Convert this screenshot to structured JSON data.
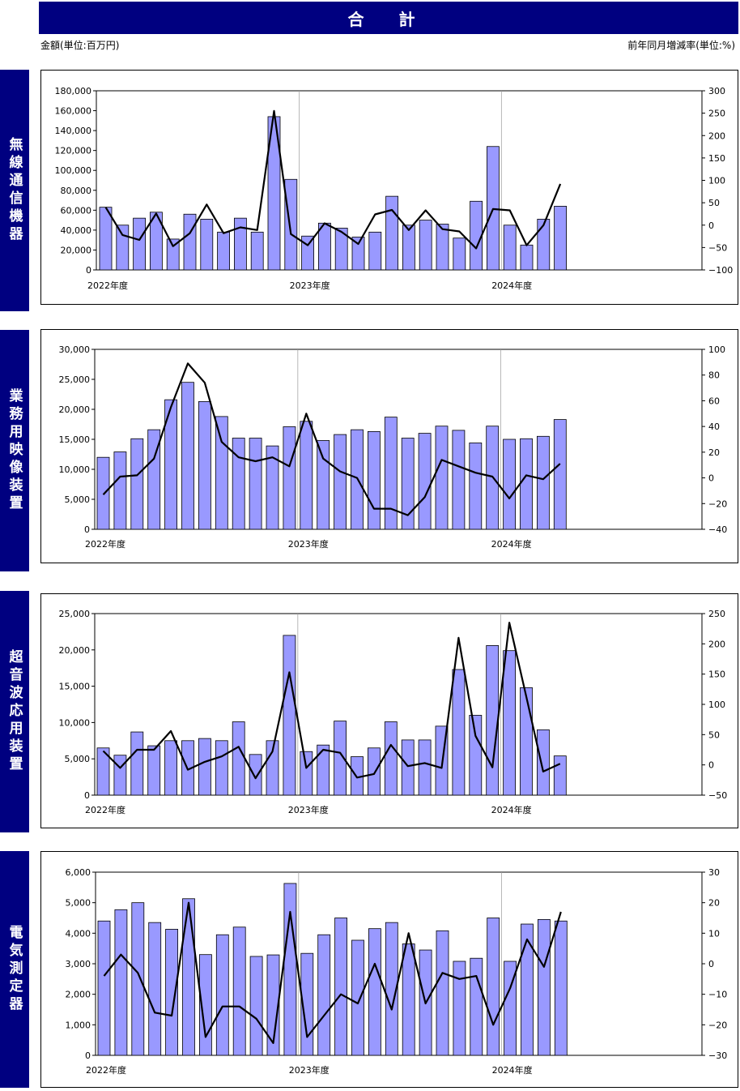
{
  "header": {
    "title": "合 計",
    "unit_left": "金額(単位:百万円)",
    "unit_right": "前年同月増減率(単位:%)"
  },
  "colors": {
    "bar": "#9999ff",
    "bar_stroke": "#000000",
    "line": "#000000",
    "header_bg": "#000080"
  },
  "chart_data": [
    {
      "type": "bar",
      "side_label": "無線通信機器",
      "year_labels": [
        "2022年度",
        "2023年度",
        "2024年度"
      ],
      "left_ticks": [
        "180,000",
        "160,000",
        "140,000",
        "120,000",
        "100,000",
        "80,000",
        "60,000",
        "40,000",
        "20,000",
        "0"
      ],
      "right_ticks": [
        "300",
        "250",
        "200",
        "150",
        "100",
        "50",
        "0",
        "−50",
        "−100"
      ],
      "ylim": [
        0,
        180000
      ],
      "y2lim": [
        -100,
        300
      ],
      "values": [
        63000,
        45000,
        52000,
        58000,
        31000,
        56000,
        51000,
        38000,
        52000,
        38000,
        154000,
        91000,
        34000,
        47000,
        42000,
        33000,
        38000,
        74000,
        45000,
        50000,
        46000,
        32000,
        69000,
        124000,
        45000,
        25000,
        51000,
        64000
      ],
      "rates": [
        40,
        -22,
        -33,
        26,
        -47,
        -18,
        46,
        -18,
        -5,
        -11,
        255,
        -20,
        -45,
        4,
        -15,
        -42,
        24,
        34,
        -11,
        33,
        -9,
        -14,
        -52,
        36,
        33,
        -45,
        0,
        92
      ]
    },
    {
      "type": "bar",
      "side_label": "業務用映像装置",
      "year_labels": [
        "2022年度",
        "2023年度",
        "2024年度"
      ],
      "left_ticks": [
        "30,000",
        "25,000",
        "20,000",
        "15,000",
        "10,000",
        "5,000",
        "0"
      ],
      "right_ticks": [
        "100",
        "80",
        "60",
        "40",
        "20",
        "0",
        "−20",
        "−40"
      ],
      "ylim": [
        0,
        30000
      ],
      "y2lim": [
        -40,
        100
      ],
      "values": [
        12000,
        12900,
        15100,
        16600,
        21600,
        24500,
        21300,
        18800,
        15200,
        15200,
        13900,
        17100,
        18000,
        14800,
        15800,
        16600,
        16300,
        18700,
        15200,
        16000,
        17200,
        16500,
        14400,
        17200,
        15000,
        15100,
        15500,
        18300
      ],
      "rates": [
        -13,
        1,
        2,
        15,
        55,
        89,
        74,
        28,
        16,
        13,
        16,
        9,
        50,
        15,
        5,
        0,
        -24,
        -24,
        -29,
        -15,
        14,
        9,
        4,
        1,
        -16,
        2,
        -1,
        11
      ]
    },
    {
      "type": "bar",
      "side_label": "超音波応用装置",
      "year_labels": [
        "2022年度",
        "2023年度",
        "2024年度"
      ],
      "left_ticks": [
        "25,000",
        "20,000",
        "15,000",
        "10,000",
        "5,000",
        "0"
      ],
      "right_ticks": [
        "250",
        "200",
        "150",
        "100",
        "50",
        "0",
        "−50"
      ],
      "ylim": [
        0,
        25000
      ],
      "y2lim": [
        -50,
        250
      ],
      "values": [
        6500,
        5500,
        8700,
        6800,
        7500,
        7500,
        7800,
        7500,
        10100,
        5600,
        7500,
        22000,
        6000,
        6900,
        10200,
        5300,
        6500,
        10100,
        7600,
        7600,
        9500,
        17300,
        11000,
        20600,
        19900,
        14800,
        9000,
        5400
      ],
      "rates": [
        23,
        -5,
        25,
        25,
        56,
        -8,
        5,
        14,
        30,
        -22,
        22,
        153,
        -5,
        25,
        20,
        -21,
        -15,
        33,
        -2,
        3,
        -5,
        210,
        48,
        -4,
        235,
        113,
        -11,
        2
      ]
    },
    {
      "type": "bar",
      "side_label": "電気測定器",
      "year_labels": [
        "2022年度",
        "2023年度",
        "2024年度"
      ],
      "left_ticks": [
        "6,000",
        "5,000",
        "4,000",
        "3,000",
        "2,000",
        "1,000",
        "0"
      ],
      "right_ticks": [
        "30",
        "20",
        "10",
        "0",
        "−10",
        "−20",
        "−30"
      ],
      "ylim": [
        0,
        6000
      ],
      "y2lim": [
        -30,
        30
      ],
      "values": [
        4400,
        4770,
        5000,
        4350,
        4130,
        5130,
        3300,
        3950,
        4200,
        3240,
        3290,
        5630,
        3340,
        3950,
        4500,
        3770,
        4150,
        4350,
        3650,
        3450,
        4080,
        3080,
        3180,
        4500,
        3080,
        4300,
        4450,
        4400
      ],
      "rates": [
        -4,
        3,
        -3,
        -16,
        -17,
        20,
        -24,
        -14,
        -14,
        -18,
        -26,
        17,
        -24,
        -17,
        -10,
        -13,
        0,
        -15,
        10,
        -13,
        -3,
        -5,
        -4,
        -20,
        -8,
        8,
        -1,
        17
      ]
    }
  ]
}
